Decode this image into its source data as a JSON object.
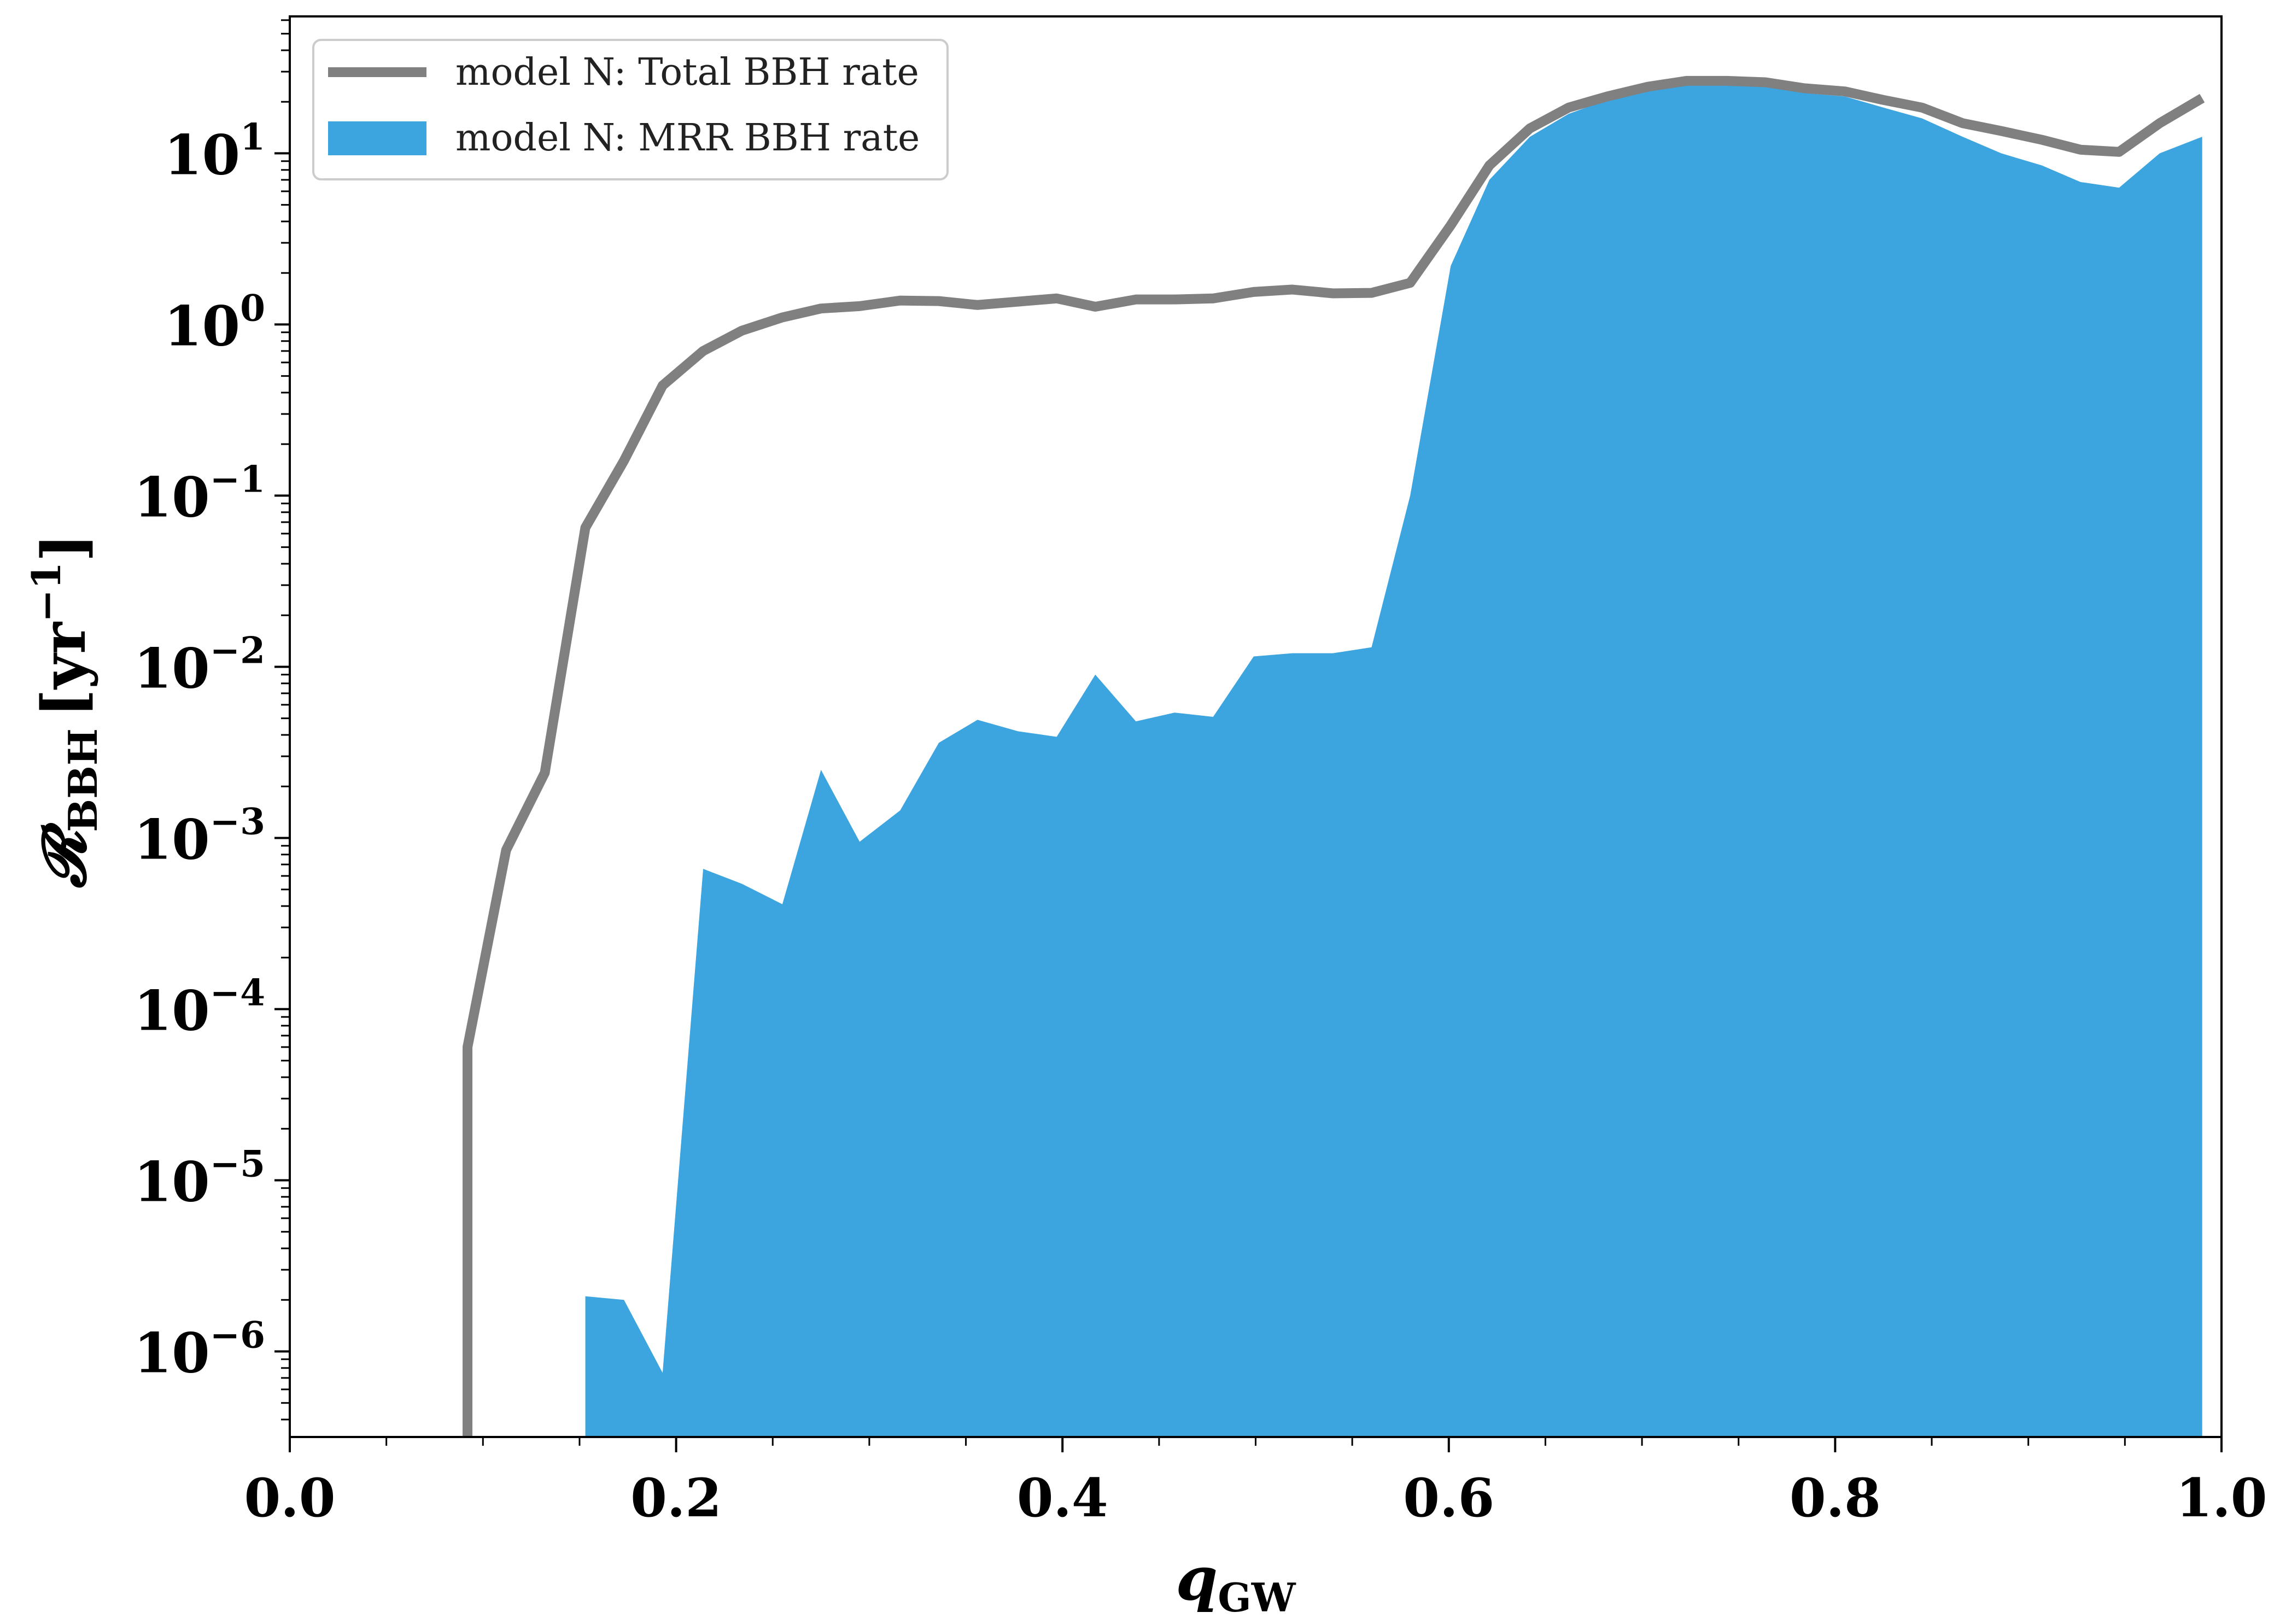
{
  "chart_data": {
    "type": "area",
    "xlabel": "q",
    "xlabel_sub": "GW",
    "ylabel": "𝓡",
    "ylabel_sub": "BBH",
    "ylabel_unit": "[yr",
    "ylabel_unit_sup": "−1",
    "ylabel_unit_close": "]",
    "xlim": [
      0.0,
      1.0
    ],
    "ylim_log10": [
      -6.5,
      1.8
    ],
    "yscale": "log",
    "grid": false,
    "legend_position": "top-left",
    "x_ticks": [
      {
        "value": 0.0,
        "label": "0.0"
      },
      {
        "value": 0.2,
        "label": "0.2"
      },
      {
        "value": 0.4,
        "label": "0.4"
      },
      {
        "value": 0.6,
        "label": "0.6"
      },
      {
        "value": 0.8,
        "label": "0.8"
      },
      {
        "value": 1.0,
        "label": "1.0"
      }
    ],
    "y_ticks": [
      {
        "exp": 1,
        "base": "10",
        "sup": "1"
      },
      {
        "exp": 0,
        "base": "10",
        "sup": "0"
      },
      {
        "exp": -1,
        "base": "10",
        "sup": "−1"
      },
      {
        "exp": -2,
        "base": "10",
        "sup": "−2"
      },
      {
        "exp": -3,
        "base": "10",
        "sup": "−3"
      },
      {
        "exp": -4,
        "base": "10",
        "sup": "−4"
      },
      {
        "exp": -5,
        "base": "10",
        "sup": "−5"
      },
      {
        "exp": -6,
        "base": "10",
        "sup": "−6"
      }
    ],
    "series": [
      {
        "name": "model N: Total BBH rate",
        "kind": "line",
        "color": "#808080",
        "x": [
          0.092,
          0.092,
          0.112,
          0.132,
          0.153,
          0.173,
          0.193,
          0.214,
          0.234,
          0.255,
          0.275,
          0.295,
          0.316,
          0.336,
          0.356,
          0.377,
          0.397,
          0.417,
          0.438,
          0.458,
          0.478,
          0.499,
          0.519,
          0.54,
          0.56,
          0.58,
          0.601,
          0.621,
          0.642,
          0.662,
          0.682,
          0.703,
          0.723,
          0.744,
          0.764,
          0.784,
          0.805,
          0.825,
          0.845,
          0.866,
          0.886,
          0.907,
          0.927,
          0.947,
          0.968,
          0.99
        ],
        "y": [
          3e-07,
          6e-05,
          0.00085,
          0.0024,
          0.065,
          0.16,
          0.44,
          0.7,
          0.92,
          1.1,
          1.24,
          1.28,
          1.38,
          1.37,
          1.3,
          1.36,
          1.42,
          1.27,
          1.4,
          1.4,
          1.42,
          1.55,
          1.6,
          1.52,
          1.53,
          1.75,
          3.8,
          8.5,
          14,
          18.5,
          21.5,
          24.5,
          26.5,
          26.5,
          26,
          24,
          23,
          20.5,
          18.5,
          15,
          13.5,
          12,
          10.5,
          10.2,
          15,
          21
        ]
      },
      {
        "name": "model N: MRR BBH rate",
        "kind": "area",
        "color": "#3ca4de",
        "x": [
          0.153,
          0.173,
          0.193,
          0.214,
          0.234,
          0.255,
          0.275,
          0.295,
          0.316,
          0.336,
          0.356,
          0.377,
          0.397,
          0.417,
          0.438,
          0.458,
          0.478,
          0.499,
          0.519,
          0.54,
          0.56,
          0.58,
          0.601,
          0.621,
          0.642,
          0.662,
          0.682,
          0.703,
          0.723,
          0.744,
          0.764,
          0.784,
          0.805,
          0.825,
          0.845,
          0.866,
          0.886,
          0.907,
          0.927,
          0.947,
          0.968,
          0.99
        ],
        "y": [
          2.1e-06,
          2e-06,
          7.5e-07,
          0.00066,
          0.00054,
          0.00041,
          0.0025,
          0.00095,
          0.00145,
          0.0036,
          0.0049,
          0.0042,
          0.0039,
          0.009,
          0.0048,
          0.0054,
          0.0051,
          0.0115,
          0.012,
          0.012,
          0.013,
          0.1,
          2.2,
          7.0,
          12.5,
          17,
          20.5,
          23,
          25,
          25,
          24.5,
          22.5,
          21.5,
          18.5,
          16,
          12.5,
          10,
          8.5,
          6.8,
          6.3,
          10,
          12.5
        ]
      }
    ]
  }
}
